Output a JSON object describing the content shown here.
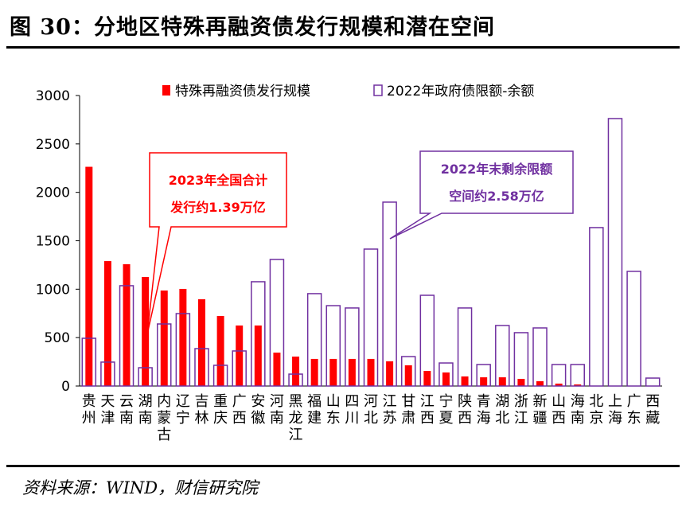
{
  "title": "图 30：分地区特殊再融资债发行规模和潜在空间",
  "source": "资料来源：WIND，财信研究院",
  "colors": {
    "red": "#ff0000",
    "purple": "#7030a0"
  },
  "chart_data": {
    "type": "bar",
    "legend_placement": "top",
    "grid": false,
    "ylim": [
      0,
      3000
    ],
    "yticks": [
      "0",
      "500",
      "1000",
      "1500",
      "2000",
      "2500",
      "3000"
    ],
    "categories": [
      "贵州",
      "天津",
      "云南",
      "湖南",
      "内蒙古",
      "辽宁",
      "吉林",
      "重庆",
      "广西",
      "安徽",
      "河南",
      "黑龙江",
      "福建",
      "山东",
      "四川",
      "河北",
      "江苏",
      "甘肃",
      "江西",
      "宁夏",
      "陕西",
      "青海",
      "湖北",
      "浙江",
      "新疆",
      "山西",
      "海南",
      "北京",
      "上海",
      "广东",
      "西藏"
    ],
    "series": [
      {
        "name": "特殊再融资债发行规模",
        "style": "filled",
        "color": "#ff0000",
        "values": [
          2264,
          1290,
          1258,
          1126,
          986,
          1003,
          896,
          723,
          625,
          625,
          345,
          304,
          280,
          280,
          280,
          280,
          255,
          214,
          156,
          140,
          99,
          90,
          90,
          74,
          50,
          25,
          16,
          0,
          0,
          0,
          0
        ]
      },
      {
        "name": "2022年政府债限额-余额",
        "style": "outline",
        "color": "#7030a0",
        "values": [
          493,
          247,
          1036,
          189,
          641,
          748,
          386,
          214,
          362,
          1077,
          1307,
          123,
          954,
          830,
          806,
          1414,
          1899,
          304,
          937,
          238,
          806,
          222,
          625,
          551,
          600,
          222,
          222,
          1636,
          2762,
          1184,
          82
        ]
      }
    ],
    "annotations": [
      {
        "lines": [
          "2023年全国合计",
          "发行约1.39万亿"
        ],
        "color": "#ff0000"
      },
      {
        "lines": [
          "2022年末剩余限额",
          "空间约2.58万亿"
        ],
        "color": "#7030a0"
      }
    ]
  }
}
